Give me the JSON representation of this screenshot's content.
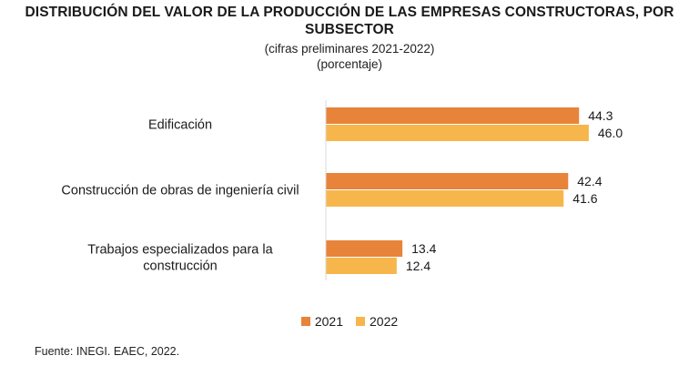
{
  "title": {
    "line1": "DISTRIBUCIÓN DEL VALOR DE LA PRODUCCIÓN DE LAS EMPRESAS CONSTRUCTORAS, POR",
    "line2": "SUBSECTOR"
  },
  "subtitle": {
    "line1": "(cifras preliminares 2021-2022)",
    "line2": "(porcentaje)"
  },
  "source": "Fuente: INEGI. EAEC, 2022.",
  "colors": {
    "2021": "#E8833A",
    "2022": "#F7B64C"
  },
  "chart_data": {
    "type": "bar",
    "orientation": "horizontal",
    "categories": [
      [
        "Edificación"
      ],
      [
        "Construcción de obras de ingeniería civil"
      ],
      [
        "Trabajos especializados para la",
        "construcción"
      ]
    ],
    "series": [
      {
        "name": "2021",
        "values": [
          44.3,
          42.4,
          13.4
        ]
      },
      {
        "name": "2022",
        "values": [
          46.0,
          41.6,
          12.4
        ]
      }
    ],
    "xlim": [
      0,
      50
    ],
    "grid": false,
    "legend": "bottom-center"
  }
}
